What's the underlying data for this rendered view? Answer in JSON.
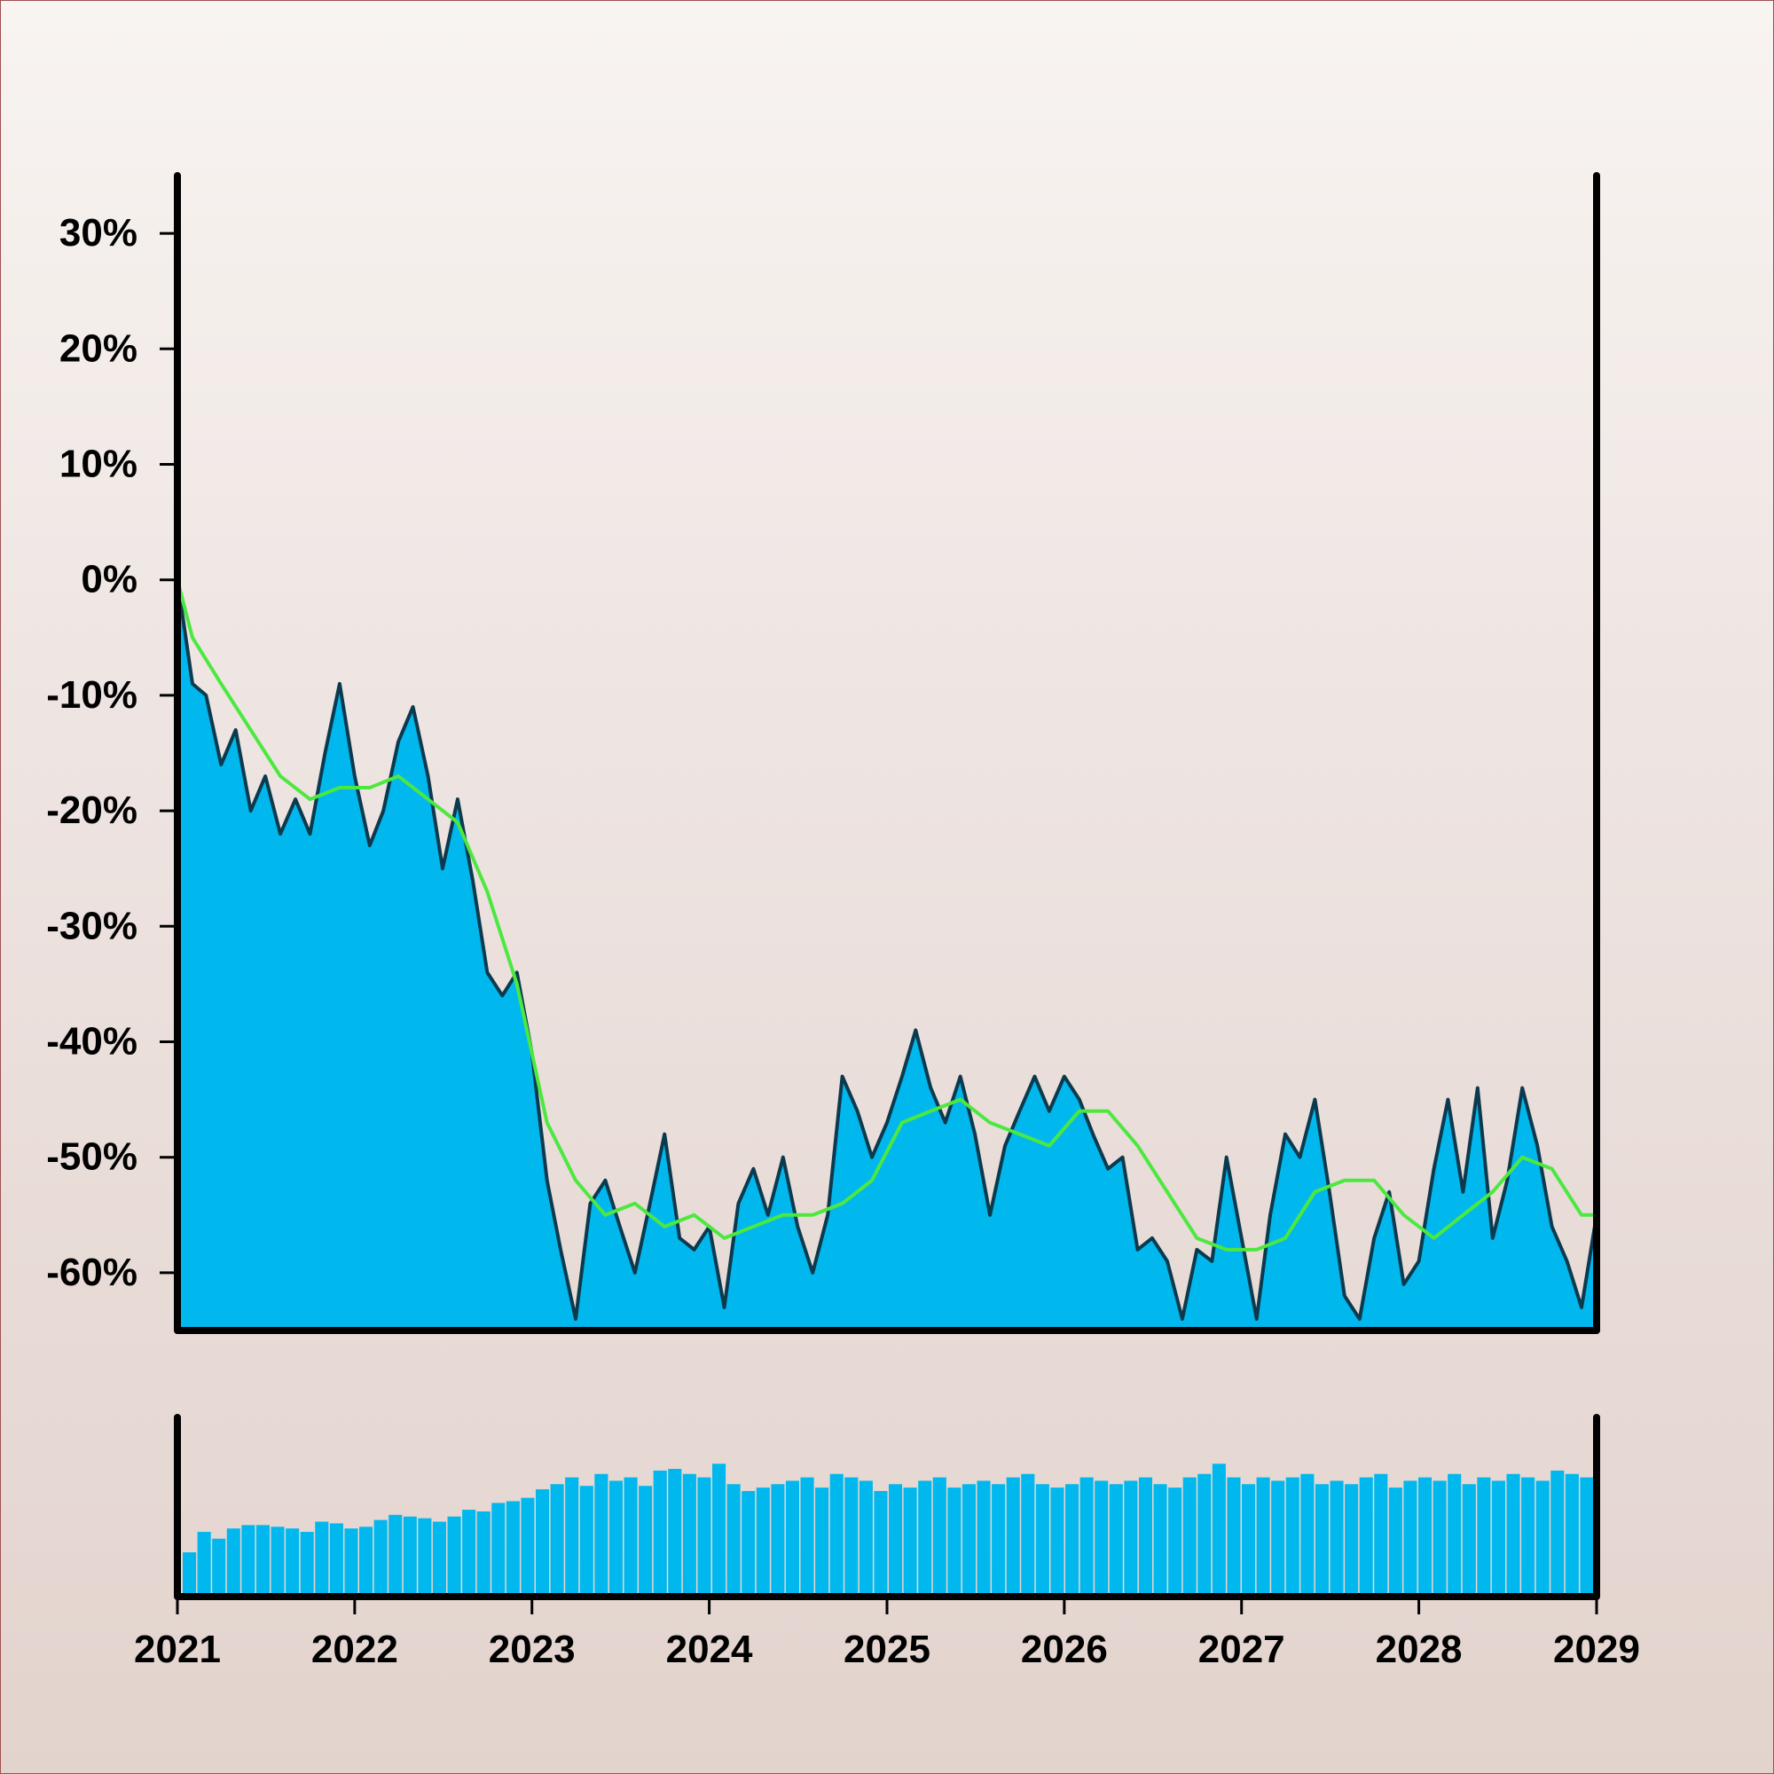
{
  "chart_data": [
    {
      "type": "area",
      "title": "",
      "xlabel": "",
      "ylabel": "",
      "ylim": [
        -0.65,
        0.35
      ],
      "xlim": [
        "2021-01-01",
        "2029-01-01"
      ],
      "y_format": "percent",
      "y_ticks": [
        0.3,
        0.2,
        0.1,
        0.0,
        -0.1,
        -0.2,
        -0.3,
        -0.4,
        -0.5,
        -0.6
      ],
      "y_tick_labels": [
        "30%",
        "20%",
        "10%",
        "0%",
        "-10%",
        "-20%",
        "-30%",
        "-40%",
        "-50%",
        "-60%"
      ],
      "grid": false,
      "series": [
        {
          "kind": "area",
          "fill": "#00b8ee",
          "stroke": "#0b3a4e",
          "x": [
            "2021-01-01",
            "2021-02-01",
            "2021-03-01",
            "2021-04-01",
            "2021-05-01",
            "2021-06-01",
            "2021-07-01",
            "2021-08-01",
            "2021-09-01",
            "2021-10-01",
            "2021-11-01",
            "2021-12-01",
            "2022-01-01",
            "2022-02-01",
            "2022-03-01",
            "2022-04-01",
            "2022-05-01",
            "2022-06-01",
            "2022-07-01",
            "2022-08-01",
            "2022-09-01",
            "2022-10-01",
            "2022-11-01",
            "2022-12-01",
            "2023-01-01",
            "2023-02-01",
            "2023-03-01",
            "2023-04-01",
            "2023-05-01",
            "2023-06-01",
            "2023-07-01",
            "2023-08-01",
            "2023-09-01",
            "2023-10-01",
            "2023-11-01",
            "2023-12-01",
            "2024-01-01",
            "2024-02-01",
            "2024-03-01",
            "2024-04-01",
            "2024-05-01",
            "2024-06-01",
            "2024-07-01",
            "2024-08-01",
            "2024-09-01",
            "2024-10-01",
            "2024-11-01",
            "2024-12-01",
            "2025-01-01",
            "2025-02-01",
            "2025-03-01",
            "2025-04-01",
            "2025-05-01",
            "2025-06-01",
            "2025-07-01",
            "2025-08-01",
            "2025-09-01",
            "2025-10-01",
            "2025-11-01",
            "2025-12-01",
            "2026-01-01",
            "2026-02-01",
            "2026-03-01",
            "2026-04-01",
            "2026-05-01",
            "2026-06-01",
            "2026-07-01",
            "2026-08-01",
            "2026-09-01",
            "2026-10-01",
            "2026-11-01",
            "2026-12-01",
            "2027-01-01",
            "2027-02-01",
            "2027-03-01",
            "2027-04-01",
            "2027-05-01",
            "2027-06-01",
            "2027-07-01",
            "2027-08-01",
            "2027-09-01",
            "2027-10-01",
            "2027-11-01",
            "2027-12-01",
            "2028-01-01",
            "2028-02-01",
            "2028-03-01",
            "2028-04-01",
            "2028-05-01",
            "2028-06-01",
            "2028-07-01",
            "2028-08-01",
            "2028-09-01",
            "2028-10-01",
            "2028-11-01",
            "2028-12-01",
            "2029-01-01"
          ],
          "y": [
            0.0,
            -0.09,
            -0.1,
            -0.16,
            -0.13,
            -0.2,
            -0.17,
            -0.22,
            -0.19,
            -0.22,
            -0.15,
            -0.09,
            -0.17,
            -0.23,
            -0.2,
            -0.14,
            -0.11,
            -0.17,
            -0.25,
            -0.19,
            -0.26,
            -0.34,
            -0.36,
            -0.34,
            -0.41,
            -0.52,
            -0.58,
            -0.64,
            -0.54,
            -0.52,
            -0.56,
            -0.6,
            -0.54,
            -0.48,
            -0.57,
            -0.58,
            -0.56,
            -0.63,
            -0.54,
            -0.51,
            -0.55,
            -0.5,
            -0.56,
            -0.6,
            -0.55,
            -0.43,
            -0.46,
            -0.5,
            -0.47,
            -0.43,
            -0.39,
            -0.44,
            -0.47,
            -0.43,
            -0.48,
            -0.55,
            -0.49,
            -0.46,
            -0.43,
            -0.46,
            -0.43,
            -0.45,
            -0.48,
            -0.51,
            -0.5,
            -0.58,
            -0.57,
            -0.59,
            -0.64,
            -0.58,
            -0.59,
            -0.5,
            -0.57,
            -0.64,
            -0.55,
            -0.48,
            -0.5,
            -0.45,
            -0.53,
            -0.62,
            -0.64,
            -0.57,
            -0.53,
            -0.61,
            -0.59,
            -0.51,
            -0.45,
            -0.53,
            -0.44,
            -0.57,
            -0.52,
            -0.44,
            -0.49,
            -0.56,
            -0.59,
            -0.63,
            -0.55
          ]
        },
        {
          "kind": "line",
          "stroke": "#4de83f",
          "x": [
            "2021-01-01",
            "2021-02-01",
            "2021-04-01",
            "2021-06-01",
            "2021-08-01",
            "2021-10-01",
            "2021-12-01",
            "2022-02-01",
            "2022-04-01",
            "2022-06-01",
            "2022-08-01",
            "2022-10-01",
            "2022-12-01",
            "2023-02-01",
            "2023-04-01",
            "2023-06-01",
            "2023-08-01",
            "2023-10-01",
            "2023-12-01",
            "2024-02-01",
            "2024-04-01",
            "2024-06-01",
            "2024-08-01",
            "2024-10-01",
            "2024-12-01",
            "2025-02-01",
            "2025-04-01",
            "2025-06-01",
            "2025-08-01",
            "2025-10-01",
            "2025-12-01",
            "2026-02-01",
            "2026-04-01",
            "2026-06-01",
            "2026-08-01",
            "2026-10-01",
            "2026-12-01",
            "2027-02-01",
            "2027-04-01",
            "2027-06-01",
            "2027-08-01",
            "2027-10-01",
            "2027-12-01",
            "2028-02-01",
            "2028-04-01",
            "2028-06-01",
            "2028-08-01",
            "2028-10-01",
            "2028-12-01",
            "2029-01-01"
          ],
          "y": [
            0.0,
            -0.05,
            -0.09,
            -0.13,
            -0.17,
            -0.19,
            -0.18,
            -0.18,
            -0.17,
            -0.19,
            -0.21,
            -0.27,
            -0.35,
            -0.47,
            -0.52,
            -0.55,
            -0.54,
            -0.56,
            -0.55,
            -0.57,
            -0.56,
            -0.55,
            -0.55,
            -0.54,
            -0.52,
            -0.47,
            -0.46,
            -0.45,
            -0.47,
            -0.48,
            -0.49,
            -0.46,
            -0.46,
            -0.49,
            -0.53,
            -0.57,
            -0.58,
            -0.58,
            -0.57,
            -0.53,
            -0.52,
            -0.52,
            -0.55,
            -0.57,
            -0.55,
            -0.53,
            -0.5,
            -0.51,
            -0.55,
            -0.55
          ]
        }
      ]
    },
    {
      "type": "bar",
      "title": "",
      "xlabel": "",
      "ylabel": "",
      "xlim": [
        "2021-01-01",
        "2029-01-01"
      ],
      "fill": "#00b8ee",
      "x_ticks": [
        "2021",
        "2022",
        "2023",
        "2024",
        "2025",
        "2026",
        "2027",
        "2028",
        "2029"
      ],
      "values": [
        0.26,
        0.38,
        0.34,
        0.4,
        0.42,
        0.42,
        0.41,
        0.4,
        0.38,
        0.44,
        0.43,
        0.4,
        0.41,
        0.45,
        0.48,
        0.47,
        0.46,
        0.44,
        0.47,
        0.51,
        0.5,
        0.55,
        0.56,
        0.58,
        0.63,
        0.66,
        0.7,
        0.65,
        0.72,
        0.68,
        0.7,
        0.65,
        0.74,
        0.75,
        0.72,
        0.7,
        0.78,
        0.66,
        0.62,
        0.64,
        0.66,
        0.68,
        0.7,
        0.64,
        0.72,
        0.7,
        0.68,
        0.62,
        0.66,
        0.64,
        0.68,
        0.7,
        0.64,
        0.66,
        0.68,
        0.66,
        0.7,
        0.72,
        0.66,
        0.64,
        0.66,
        0.7,
        0.68,
        0.66,
        0.68,
        0.7,
        0.66,
        0.64,
        0.7,
        0.72,
        0.78,
        0.7,
        0.66,
        0.7,
        0.68,
        0.7,
        0.72,
        0.66,
        0.68,
        0.66,
        0.7,
        0.72,
        0.64,
        0.68,
        0.7,
        0.68,
        0.72,
        0.66,
        0.7,
        0.68,
        0.72,
        0.7,
        0.68,
        0.74,
        0.72,
        0.7
      ]
    }
  ]
}
